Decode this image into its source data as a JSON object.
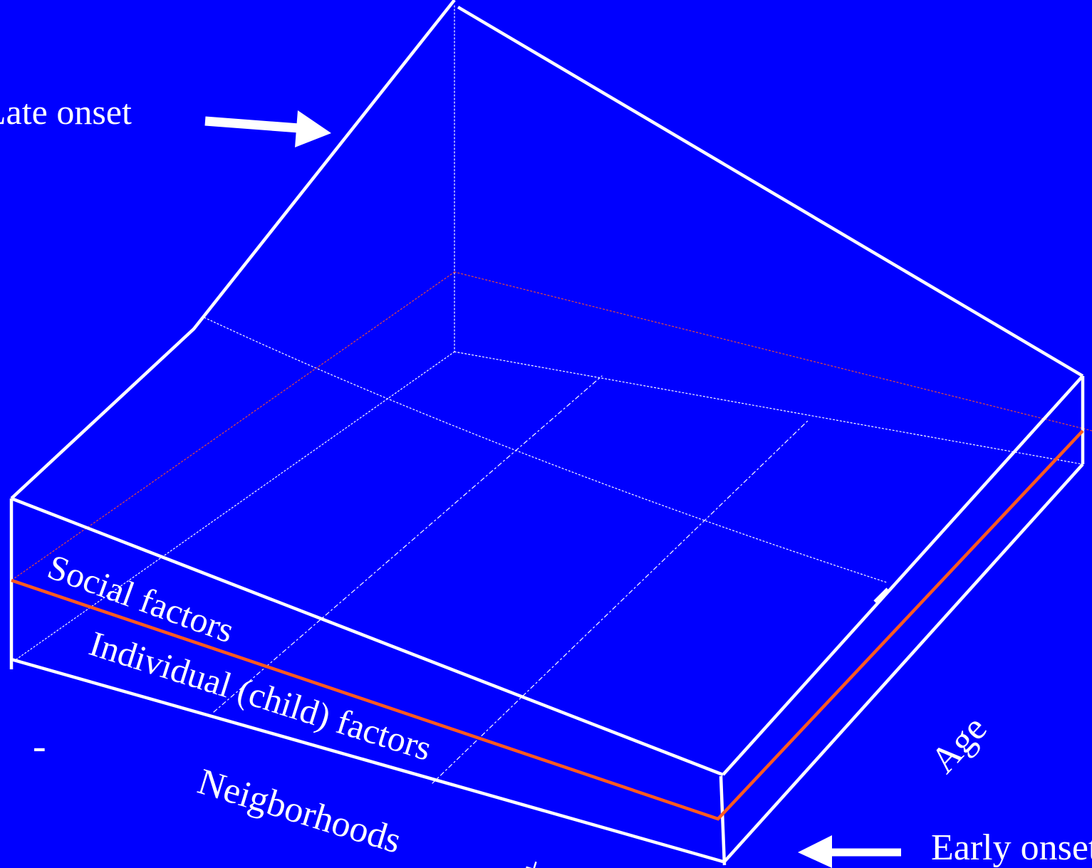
{
  "diagram": {
    "colors": {
      "background": "#0000FF",
      "line": "#FFFFFF",
      "divider": "#FF5A1F",
      "guide": "#E84A3A"
    },
    "labels": {
      "late_onset": "Late onset",
      "early_onset": "Early onset",
      "social_factors": "Social factors",
      "individual_factors": "Individual (child) factors",
      "neighborhoods": "Neigborhoods",
      "age": "Age",
      "minus": "-",
      "plus": "+"
    },
    "arrows": [
      {
        "name": "late-onset-arrow",
        "direction": "right"
      },
      {
        "name": "early-onset-arrow",
        "direction": "left"
      }
    ]
  }
}
